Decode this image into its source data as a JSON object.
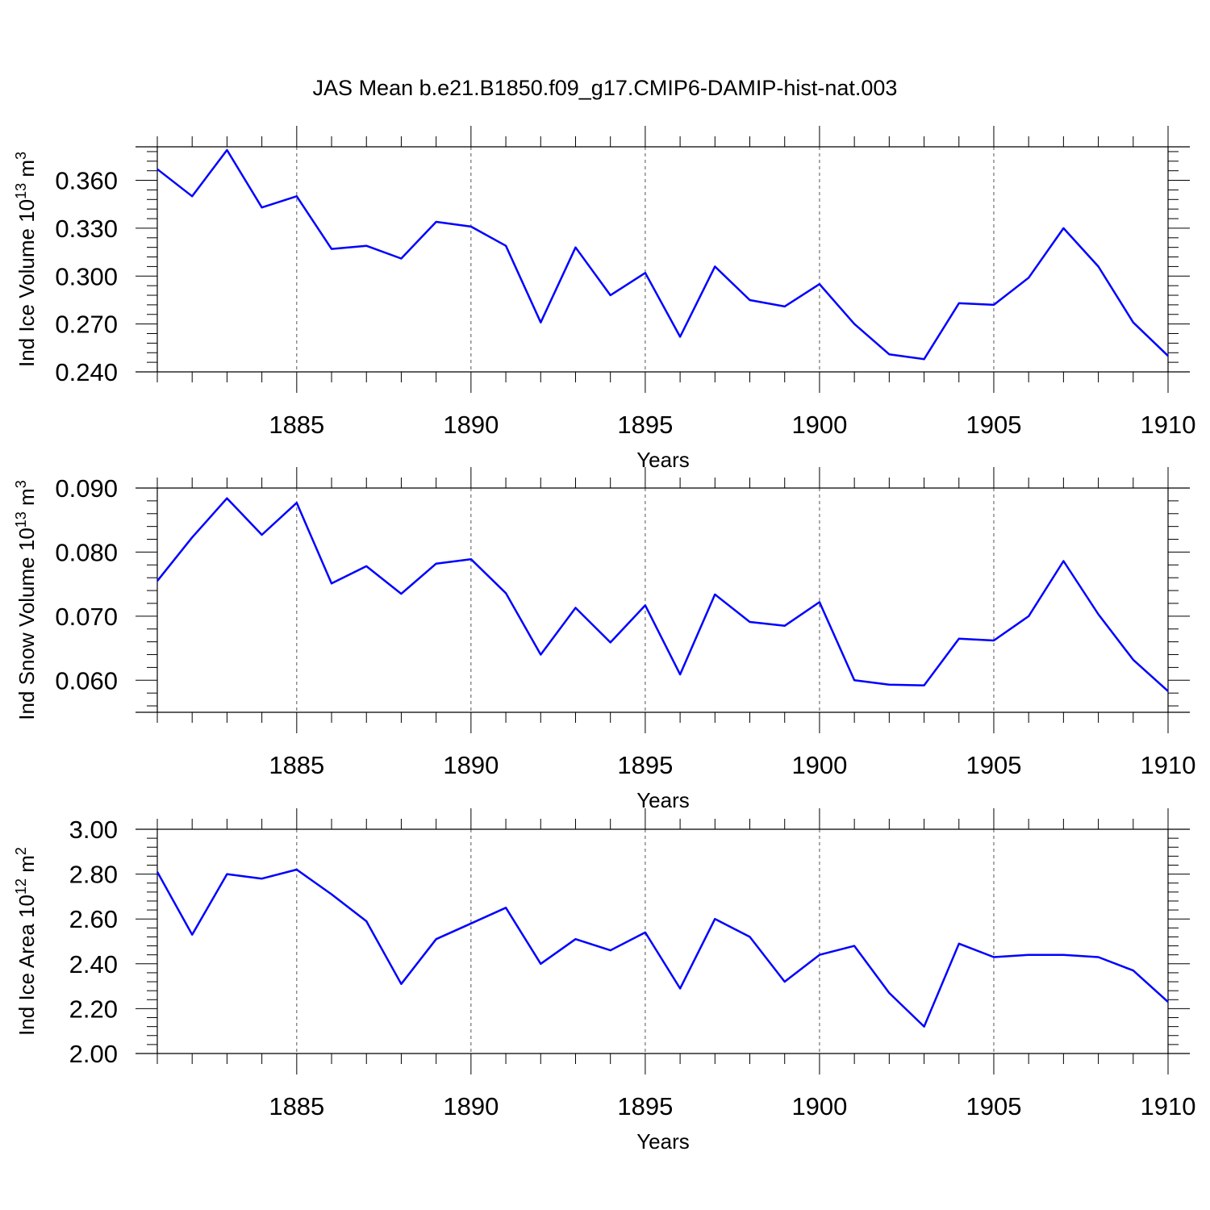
{
  "page_title": "JAS Mean b.e21.B1850.f09_g17.CMIP6-DAMIP-hist-nat.003",
  "line_color": "#0000ff",
  "chart_data": [
    {
      "type": "line",
      "title": "JAS Mean b.e21.B1850.f09_g17.CMIP6-DAMIP-hist-nat.003",
      "xlabel": "Years",
      "ylabel": "Ind Ice Volume",
      "ylabel_unit_base": "10",
      "ylabel_unit_exp": "13",
      "ylabel_unit_sym": "m",
      "ylabel_unit_sym_exp": "3",
      "xlim": [
        1881,
        1910
      ],
      "ylim": [
        0.24,
        0.381
      ],
      "xticks": [
        1885,
        1890,
        1895,
        1900,
        1905,
        1910
      ],
      "xtick_labels": [
        "1885",
        "1890",
        "1895",
        "1900",
        "1905",
        "1910"
      ],
      "yticks": [
        0.24,
        0.27,
        0.3,
        0.33,
        0.36
      ],
      "ytick_labels": [
        "0.240",
        "0.270",
        "0.300",
        "0.330",
        "0.360"
      ],
      "grid": "vertical dashed at major x ticks",
      "x": [
        1881,
        1882,
        1883,
        1884,
        1885,
        1886,
        1887,
        1888,
        1889,
        1890,
        1891,
        1892,
        1893,
        1894,
        1895,
        1896,
        1897,
        1898,
        1899,
        1900,
        1901,
        1902,
        1903,
        1904,
        1905,
        1906,
        1907,
        1908,
        1909,
        1910
      ],
      "series": [
        {
          "values": [
            0.367,
            0.35,
            0.379,
            0.343,
            0.35,
            0.317,
            0.319,
            0.311,
            0.334,
            0.331,
            0.319,
            0.271,
            0.318,
            0.288,
            0.302,
            0.262,
            0.306,
            0.285,
            0.281,
            0.295,
            0.27,
            0.251,
            0.248,
            0.283,
            0.282,
            0.299,
            0.33,
            0.306,
            0.271,
            0.25
          ]
        }
      ]
    },
    {
      "type": "line",
      "xlabel": "Years",
      "ylabel": "Ind Snow Volume",
      "ylabel_unit_base": "10",
      "ylabel_unit_exp": "13",
      "ylabel_unit_sym": "m",
      "ylabel_unit_sym_exp": "3",
      "xlim": [
        1881,
        1910
      ],
      "ylim": [
        0.055,
        0.09
      ],
      "xticks": [
        1885,
        1890,
        1895,
        1900,
        1905,
        1910
      ],
      "xtick_labels": [
        "1885",
        "1890",
        "1895",
        "1900",
        "1905",
        "1910"
      ],
      "yticks": [
        0.06,
        0.07,
        0.08,
        0.09
      ],
      "ytick_labels": [
        "0.060",
        "0.070",
        "0.080",
        "0.090"
      ],
      "grid": "vertical dashed at major x ticks",
      "x": [
        1881,
        1882,
        1883,
        1884,
        1885,
        1886,
        1887,
        1888,
        1889,
        1890,
        1891,
        1892,
        1893,
        1894,
        1895,
        1896,
        1897,
        1898,
        1899,
        1900,
        1901,
        1902,
        1903,
        1904,
        1905,
        1906,
        1907,
        1908,
        1909,
        1910
      ],
      "series": [
        {
          "values": [
            0.0755,
            0.0823,
            0.0884,
            0.0827,
            0.0877,
            0.0751,
            0.0778,
            0.0735,
            0.0782,
            0.0789,
            0.0736,
            0.064,
            0.0713,
            0.0659,
            0.0717,
            0.0609,
            0.0734,
            0.0691,
            0.0685,
            0.0722,
            0.06,
            0.0593,
            0.0592,
            0.0665,
            0.0662,
            0.07,
            0.0786,
            0.0703,
            0.0632,
            0.0583
          ]
        }
      ]
    },
    {
      "type": "line",
      "xlabel": "Years",
      "ylabel": "Ind Ice Area",
      "ylabel_unit_base": "10",
      "ylabel_unit_exp": "12",
      "ylabel_unit_sym": "m",
      "ylabel_unit_sym_exp": "2",
      "xlim": [
        1881,
        1910
      ],
      "ylim": [
        2.0,
        3.0
      ],
      "xticks": [
        1885,
        1890,
        1895,
        1900,
        1905,
        1910
      ],
      "xtick_labels": [
        "1885",
        "1890",
        "1895",
        "1900",
        "1905",
        "1910"
      ],
      "yticks": [
        2.0,
        2.2,
        2.4,
        2.6,
        2.8,
        3.0
      ],
      "ytick_labels": [
        "2.00",
        "2.20",
        "2.40",
        "2.60",
        "2.80",
        "3.00"
      ],
      "grid": "vertical dashed at major x ticks",
      "x": [
        1881,
        1882,
        1883,
        1884,
        1885,
        1886,
        1887,
        1888,
        1889,
        1890,
        1891,
        1892,
        1893,
        1894,
        1895,
        1896,
        1897,
        1898,
        1899,
        1900,
        1901,
        1902,
        1903,
        1904,
        1905,
        1906,
        1907,
        1908,
        1909,
        1910
      ],
      "series": [
        {
          "values": [
            2.81,
            2.53,
            2.8,
            2.78,
            2.82,
            2.71,
            2.59,
            2.31,
            2.51,
            2.58,
            2.65,
            2.4,
            2.51,
            2.46,
            2.54,
            2.29,
            2.6,
            2.52,
            2.32,
            2.44,
            2.48,
            2.27,
            2.12,
            2.49,
            2.43,
            2.44,
            2.44,
            2.43,
            2.37,
            2.23
          ]
        }
      ]
    }
  ]
}
